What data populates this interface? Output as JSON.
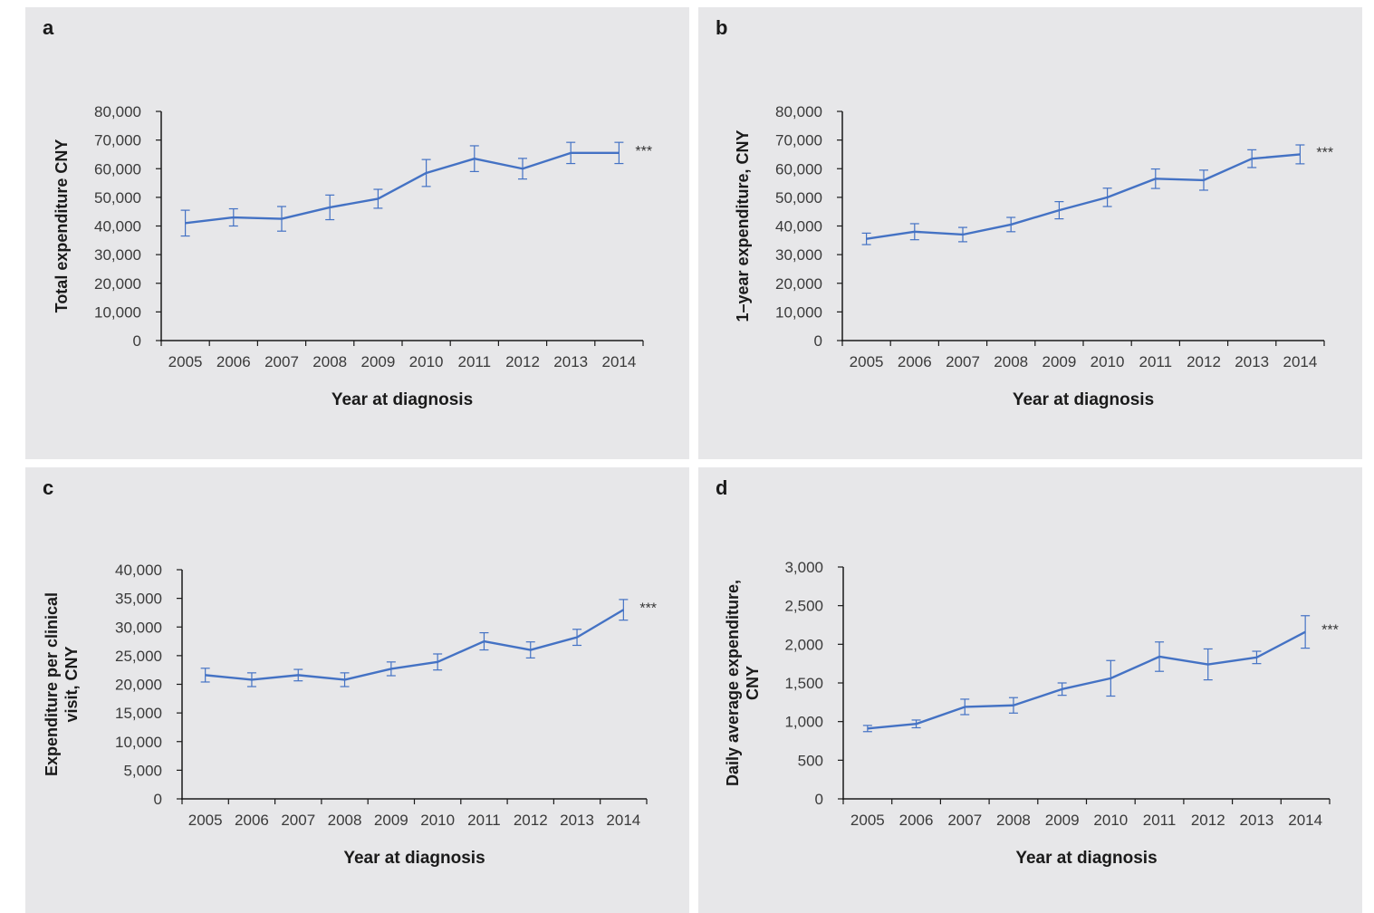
{
  "colors": {
    "line": "#4472c4",
    "axis": "#1a1a1a",
    "panel_bg": "#e7e7e9"
  },
  "chart_data": [
    {
      "panel_label": "a",
      "type": "line",
      "categories": [
        "2005",
        "2006",
        "2007",
        "2008",
        "2009",
        "2010",
        "2011",
        "2012",
        "2013",
        "2014"
      ],
      "series": [
        {
          "values": [
            41000,
            43000,
            42500,
            46500,
            49500,
            58500,
            63500,
            60000,
            65500,
            65500
          ],
          "error": [
            4500,
            3000,
            4300,
            4300,
            3300,
            4700,
            4500,
            3600,
            3700,
            3700
          ]
        }
      ],
      "ylim": [
        0,
        80000
      ],
      "yticks": [
        0,
        10000,
        20000,
        30000,
        40000,
        50000,
        60000,
        70000,
        80000
      ],
      "ytick_labels": [
        "0",
        "10,000",
        "20,000",
        "30,000",
        "40,000",
        "50,000",
        "60,000",
        "70,000",
        "80,000"
      ],
      "xlabel": "Year at diagnosis",
      "ylabel": [
        "Total expenditure  CNY"
      ],
      "annotation": "***",
      "grid": false
    },
    {
      "panel_label": "b",
      "type": "line",
      "categories": [
        "2005",
        "2006",
        "2007",
        "2008",
        "2009",
        "2010",
        "2011",
        "2012",
        "2013",
        "2014"
      ],
      "series": [
        {
          "values": [
            35500,
            38000,
            37000,
            40500,
            45500,
            50000,
            56500,
            56000,
            63500,
            65000
          ],
          "error": [
            2000,
            2800,
            2500,
            2500,
            3000,
            3200,
            3400,
            3500,
            3100,
            3300
          ]
        }
      ],
      "ylim": [
        0,
        80000
      ],
      "yticks": [
        0,
        10000,
        20000,
        30000,
        40000,
        50000,
        60000,
        70000,
        80000
      ],
      "ytick_labels": [
        "0",
        "10,000",
        "20,000",
        "30,000",
        "40,000",
        "50,000",
        "60,000",
        "70,000",
        "80,000"
      ],
      "xlabel": "Year at diagnosis",
      "ylabel": [
        "1–year expenditure,  CNY"
      ],
      "annotation": "***",
      "grid": false
    },
    {
      "panel_label": "c",
      "type": "line",
      "categories": [
        "2005",
        "2006",
        "2007",
        "2008",
        "2009",
        "2010",
        "2011",
        "2012",
        "2013",
        "2014"
      ],
      "series": [
        {
          "values": [
            21600,
            20800,
            21600,
            20800,
            22700,
            23900,
            27500,
            26000,
            28200,
            33000
          ],
          "error": [
            1200,
            1200,
            1000,
            1200,
            1200,
            1400,
            1500,
            1400,
            1400,
            1800
          ]
        }
      ],
      "ylim": [
        0,
        40000
      ],
      "yticks": [
        0,
        5000,
        10000,
        15000,
        20000,
        25000,
        30000,
        35000,
        40000
      ],
      "ytick_labels": [
        "0",
        "5,000",
        "10,000",
        "15,000",
        "20,000",
        "25,000",
        "30,000",
        "35,000",
        "40,000"
      ],
      "xlabel": "Year at diagnosis",
      "ylabel": [
        "Expenditure per clinical",
        "visit, CNY"
      ],
      "annotation": "***",
      "grid": false
    },
    {
      "panel_label": "d",
      "type": "line",
      "categories": [
        "2005",
        "2006",
        "2007",
        "2008",
        "2009",
        "2010",
        "2011",
        "2012",
        "2013",
        "2014"
      ],
      "series": [
        {
          "values": [
            910,
            970,
            1190,
            1210,
            1420,
            1560,
            1840,
            1740,
            1830,
            2160
          ],
          "error": [
            40,
            50,
            100,
            100,
            80,
            230,
            190,
            200,
            80,
            210
          ]
        }
      ],
      "ylim": [
        0,
        3000
      ],
      "yticks": [
        0,
        500,
        1000,
        1500,
        2000,
        2500,
        3000
      ],
      "ytick_labels": [
        "0",
        "500",
        "1,000",
        "1,500",
        "2,000",
        "2,500",
        "3,000"
      ],
      "xlabel": "Year at diagnosis",
      "ylabel": [
        "Daily average expenditure,",
        "CNY"
      ],
      "annotation": "***",
      "grid": false
    }
  ]
}
